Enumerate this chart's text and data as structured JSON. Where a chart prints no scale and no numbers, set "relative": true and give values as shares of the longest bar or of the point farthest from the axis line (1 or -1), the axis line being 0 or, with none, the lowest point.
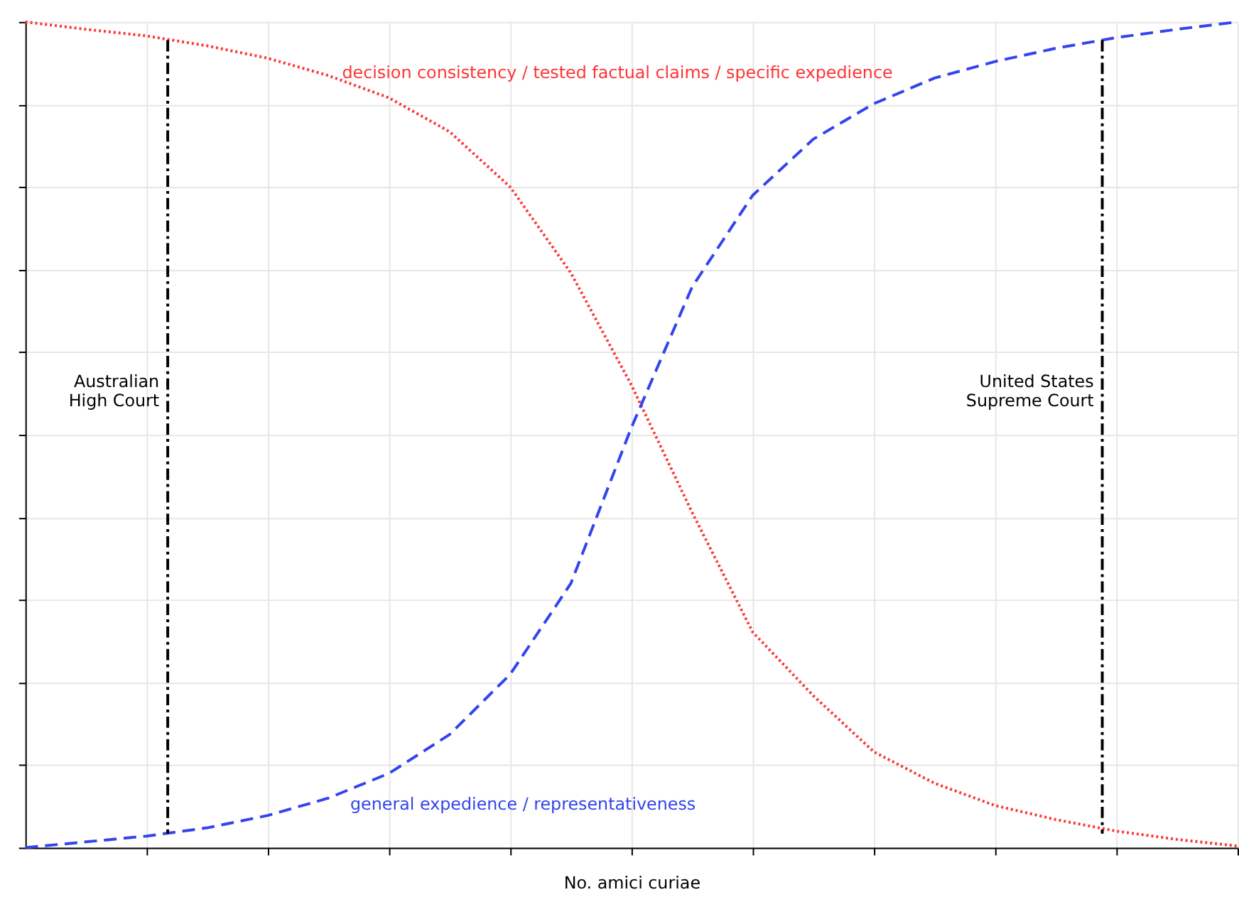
{
  "chart_data": {
    "type": "line",
    "xlabel": "No. amici curiae",
    "relative": true,
    "tick_labels": false,
    "grid": true,
    "categories": [
      null,
      null,
      null,
      null,
      null,
      null,
      null,
      null,
      null,
      null,
      null,
      null,
      null,
      null,
      null,
      null,
      null,
      null,
      null,
      null,
      null
    ],
    "series": [
      {
        "name": "decision consistency / tested factual claims / specific expedience",
        "color": "#ff3333",
        "line_style": "dotted",
        "values": [
          1.0,
          0.991,
          0.983,
          0.971,
          0.956,
          0.935,
          0.908,
          0.867,
          0.8,
          0.696,
          0.56,
          0.406,
          0.261,
          0.184,
          0.116,
          0.078,
          0.051,
          0.034,
          0.02,
          0.01,
          0.002
        ]
      },
      {
        "name": "general expedience / representativeness",
        "color": "#3344ee",
        "line_style": "dashed",
        "values": [
          0,
          0.007,
          0.014,
          0.024,
          0.039,
          0.06,
          0.09,
          0.137,
          0.21,
          0.32,
          0.509,
          0.679,
          0.79,
          0.858,
          0.901,
          0.932,
          0.952,
          0.968,
          0.981,
          0.991,
          1.0
        ]
      }
    ],
    "ref_lines": [
      {
        "axis": "x",
        "label": "Australian\nHigh Court",
        "color": "#000000",
        "line_style": "dashed"
      },
      {
        "axis": "x",
        "label": "United States\nSupreme Court",
        "color": "#000000",
        "line_style": "dashed"
      }
    ]
  }
}
